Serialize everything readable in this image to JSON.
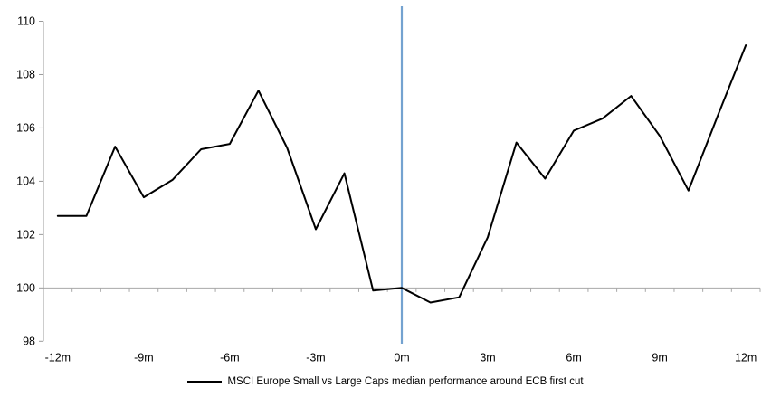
{
  "chart_data": {
    "type": "line",
    "title": "",
    "xlabel": "",
    "ylabel": "",
    "x": [
      -12,
      -11,
      -10,
      -9,
      -8,
      -7,
      -6,
      -5,
      -4,
      -3,
      -2,
      -1,
      0,
      1,
      2,
      3,
      4,
      5,
      6,
      7,
      8,
      9,
      10,
      11,
      12
    ],
    "series": [
      {
        "name": "MSCI Europe Small vs Large Caps median performance around ECB first cut",
        "color": "#000000",
        "values": [
          102.7,
          102.7,
          105.3,
          103.4,
          104.05,
          105.2,
          105.4,
          107.4,
          105.25,
          102.2,
          104.3,
          99.9,
          100.0,
          99.45,
          99.65,
          101.9,
          105.45,
          104.1,
          105.9,
          106.35,
          107.2,
          105.7,
          103.65,
          106.4,
          109.1
        ]
      }
    ],
    "xlim": [
      -12.5,
      12.5
    ],
    "ylim": [
      98,
      110
    ],
    "y_ticks": [
      98,
      100,
      102,
      104,
      106,
      108,
      110
    ],
    "x_tick_step_months": 1,
    "x_label_values": [
      -12,
      -9,
      -6,
      -3,
      0,
      3,
      6,
      9,
      12
    ],
    "x_label_texts": [
      "-12m",
      "-9m",
      "-6m",
      "-3m",
      "0m",
      "3m",
      "6m",
      "9m",
      "12m"
    ],
    "baseline_value": 100,
    "event_line_x": 0,
    "grid": "baseline-only",
    "legend_position": "bottom"
  },
  "legend": {
    "label": "MSCI Europe Small vs Large Caps median performance around ECB first cut"
  },
  "colors": {
    "series_line": "#000000",
    "event_line": "#74a2d0",
    "axis": "#9b9b9b",
    "baseline": "#a8a8a8",
    "tick_label": "#000000"
  }
}
